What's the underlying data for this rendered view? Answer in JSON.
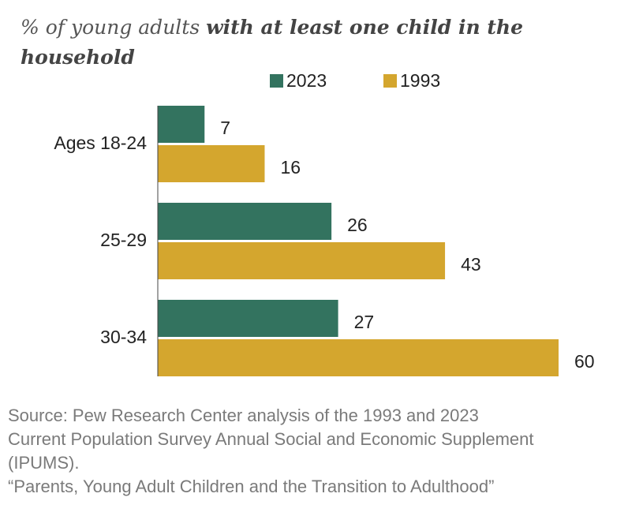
{
  "title": {
    "regular": "% of young adults ",
    "bold": "with at least one child in the household"
  },
  "chart_data": {
    "type": "bar",
    "orientation": "horizontal",
    "categories": [
      "Ages 18-24",
      "25-29",
      "30-34"
    ],
    "series": [
      {
        "name": "2023",
        "color": "#33735f",
        "values": [
          7,
          26,
          27
        ]
      },
      {
        "name": "1993",
        "color": "#d4a62e",
        "values": [
          16,
          43,
          60
        ]
      }
    ],
    "xlim": [
      0,
      60
    ],
    "grid": false,
    "legend": "top",
    "data_labels": true
  },
  "source": {
    "lines": [
      "Source: Pew Research Center analysis of the 1993 and 2023",
      "Current Population Survey Annual Social and Economic Supplement",
      "(IPUMS).",
      "“Parents, Young Adult Children and the Transition to Adulthood”"
    ]
  }
}
